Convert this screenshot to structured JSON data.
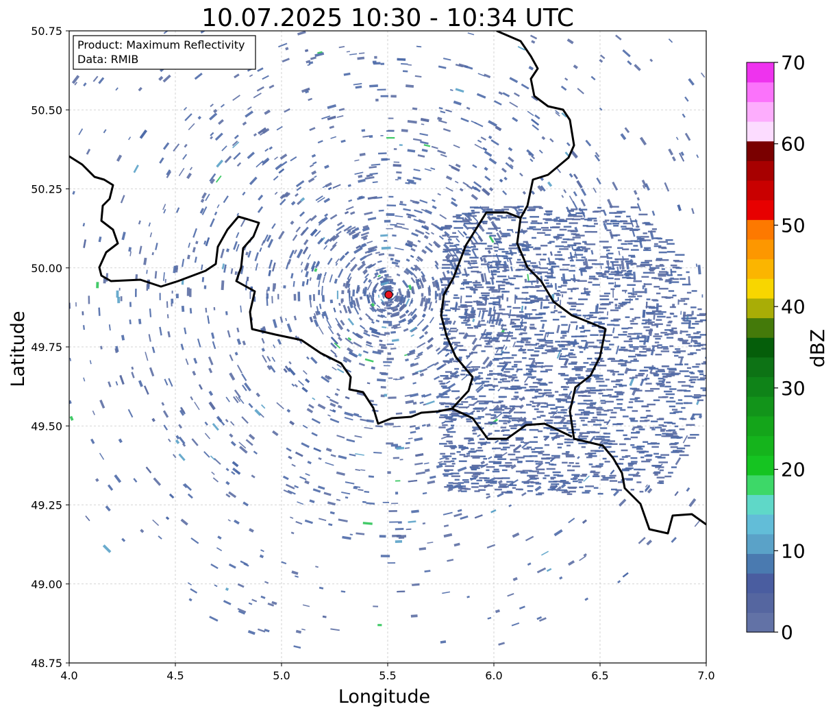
{
  "title": "10.07.2025 10:30 - 10:34 UTC",
  "info_box": {
    "product": "Product: Maximum Reflectivity",
    "data": "Data: RMIB"
  },
  "axes": {
    "xlabel": "Longitude",
    "ylabel": "Latitude",
    "xlim": [
      4.0,
      7.0
    ],
    "ylim": [
      48.75,
      50.75
    ],
    "xticks": [
      "4.0",
      "4.5",
      "5.0",
      "5.5",
      "6.0",
      "6.5",
      "7.0"
    ],
    "yticks": [
      "50.75",
      "50.50",
      "50.25",
      "50.00",
      "49.75",
      "49.50",
      "49.25",
      "49.00",
      "48.75"
    ],
    "grid": true
  },
  "radar_site": {
    "lon": 5.505,
    "lat": 49.915,
    "color": "#e8141e"
  },
  "colorbar": {
    "label": "dBZ",
    "ticks": [
      "0",
      "10",
      "20",
      "30",
      "40",
      "50",
      "60",
      "70"
    ],
    "range": [
      0,
      70
    ],
    "colors": [
      "#6272a6",
      "#5566a0",
      "#4a5da0",
      "#4a7ab0",
      "#5aa2c8",
      "#62bdd8",
      "#5fd8c8",
      "#3dd868",
      "#15c421",
      "#15b41c",
      "#14a51a",
      "#12941a",
      "#0f8318",
      "#0d7315",
      "#055e0a",
      "#447a0a",
      "#a9ad06",
      "#f8d600",
      "#fbb500",
      "#fd9700",
      "#fd7900",
      "#e70000",
      "#c90000",
      "#a70000",
      "#7a0000",
      "#fcdcff",
      "#fdadfd",
      "#fb73fb",
      "#ee33ee"
    ]
  },
  "colors": {
    "echo_light": "#5d6fa4",
    "echo_mid": "#4e6aa8",
    "echo_cyan": "#5aa2c8",
    "echo_green": "#2ec458",
    "border": "#000000",
    "grid": "#c8c8c8"
  }
}
